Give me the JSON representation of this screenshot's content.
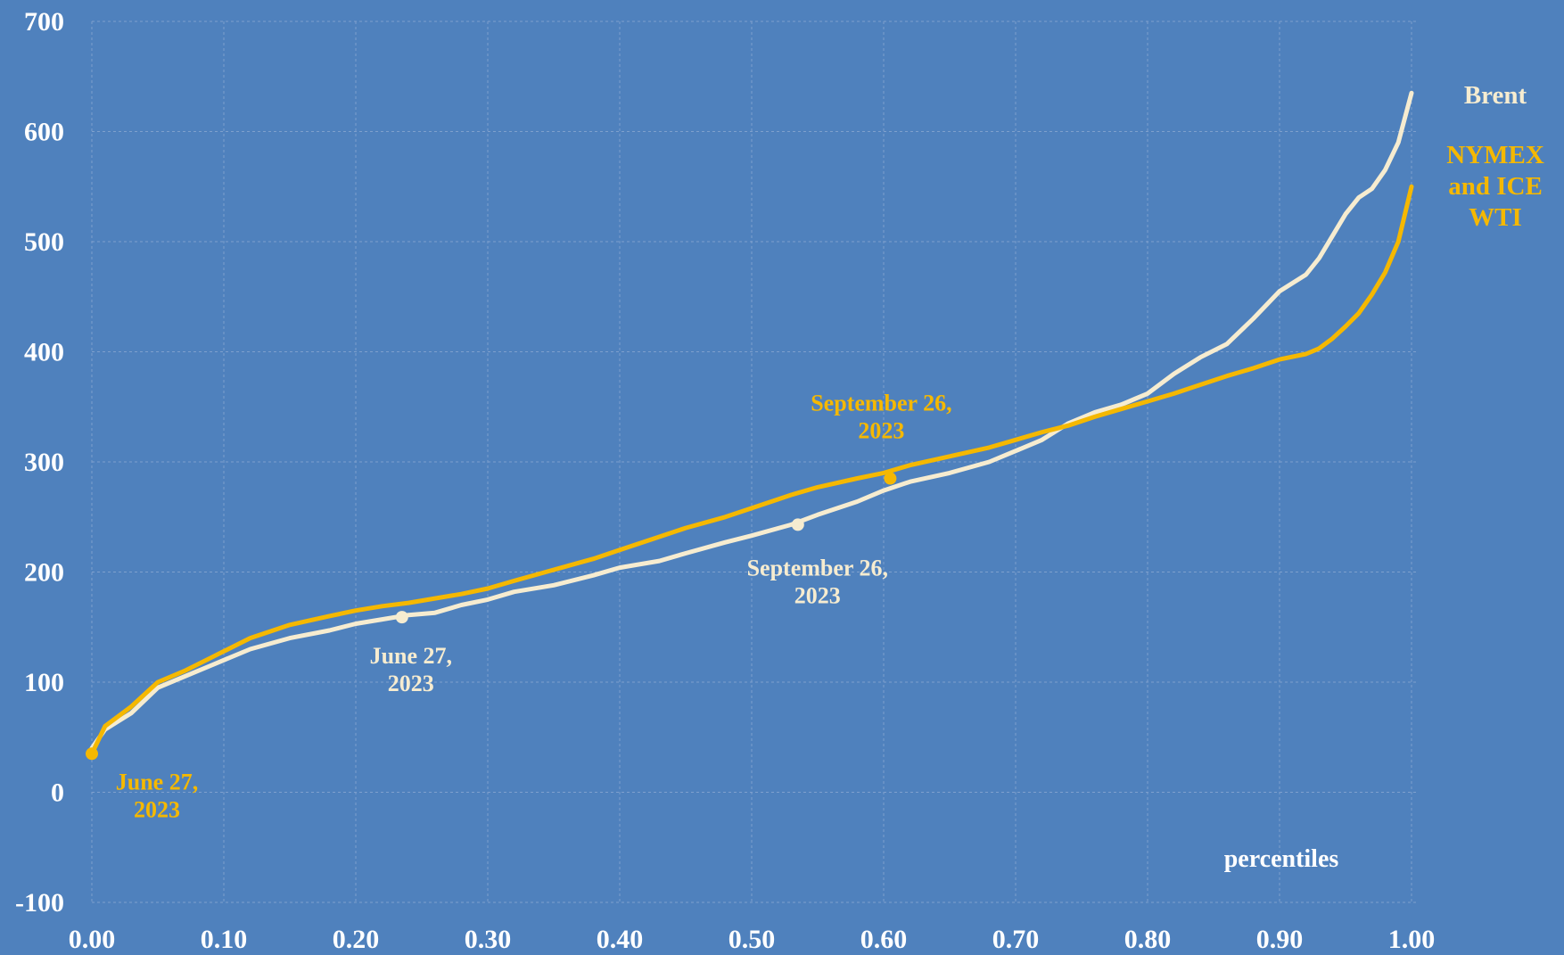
{
  "chart_data": {
    "type": "line",
    "title": "",
    "xlabel": "percentiles",
    "ylabel": "",
    "xlim": [
      0,
      1
    ],
    "ylim": [
      -100,
      700
    ],
    "grid": true,
    "x_ticks": [
      0.0,
      0.1,
      0.2,
      0.3,
      0.4,
      0.5,
      0.6,
      0.7,
      0.8,
      0.9,
      1.0
    ],
    "x_tick_labels": [
      "0.00",
      "0.10",
      "0.20",
      "0.30",
      "0.40",
      "0.50",
      "0.60",
      "0.70",
      "0.80",
      "0.90",
      "1.00"
    ],
    "y_ticks": [
      -100,
      0,
      100,
      200,
      300,
      400,
      500,
      600,
      700
    ],
    "y_tick_labels": [
      "-100",
      "0",
      "100",
      "200",
      "300",
      "400",
      "500",
      "600",
      "700"
    ],
    "colors": {
      "background": "#4f81bd",
      "grid": "#7ea0cd",
      "brent": "#f6ecd0",
      "wti": "#f5b800",
      "axis_text": "#ffffff"
    },
    "series": [
      {
        "name": "Brent",
        "label_lines": [
          "Brent"
        ],
        "color": "#f6ecd0",
        "x": [
          0.0,
          0.01,
          0.03,
          0.05,
          0.07,
          0.09,
          0.1,
          0.12,
          0.15,
          0.18,
          0.2,
          0.22,
          0.24,
          0.26,
          0.28,
          0.3,
          0.32,
          0.35,
          0.38,
          0.4,
          0.43,
          0.45,
          0.48,
          0.5,
          0.53,
          0.55,
          0.58,
          0.6,
          0.62,
          0.65,
          0.68,
          0.7,
          0.72,
          0.74,
          0.76,
          0.78,
          0.8,
          0.82,
          0.84,
          0.86,
          0.88,
          0.9,
          0.92,
          0.93,
          0.94,
          0.95,
          0.96,
          0.97,
          0.98,
          0.99,
          1.0
        ],
        "values": [
          40,
          57,
          72,
          95,
          105,
          115,
          120,
          130,
          140,
          147,
          153,
          157,
          161,
          163,
          170,
          175,
          182,
          188,
          197,
          204,
          210,
          217,
          227,
          233,
          243,
          252,
          264,
          274,
          282,
          290,
          300,
          310,
          320,
          335,
          345,
          352,
          362,
          380,
          395,
          407,
          430,
          455,
          470,
          485,
          505,
          525,
          540,
          548,
          565,
          590,
          635
        ]
      },
      {
        "name": "NYMEX and ICE WTI",
        "label_lines": [
          "NYMEX",
          "and ICE",
          "WTI"
        ],
        "color": "#f5b800",
        "x": [
          0.0,
          0.01,
          0.03,
          0.05,
          0.07,
          0.09,
          0.1,
          0.12,
          0.15,
          0.18,
          0.2,
          0.22,
          0.24,
          0.26,
          0.28,
          0.3,
          0.32,
          0.35,
          0.38,
          0.4,
          0.43,
          0.45,
          0.48,
          0.5,
          0.53,
          0.55,
          0.58,
          0.6,
          0.62,
          0.65,
          0.68,
          0.7,
          0.72,
          0.74,
          0.76,
          0.78,
          0.8,
          0.82,
          0.84,
          0.86,
          0.88,
          0.9,
          0.92,
          0.93,
          0.94,
          0.95,
          0.96,
          0.97,
          0.98,
          0.99,
          1.0
        ],
        "values": [
          35,
          60,
          78,
          100,
          110,
          122,
          128,
          140,
          152,
          160,
          165,
          169,
          172,
          176,
          180,
          185,
          192,
          202,
          212,
          220,
          232,
          240,
          250,
          258,
          270,
          277,
          285,
          290,
          297,
          305,
          313,
          320,
          327,
          333,
          341,
          348,
          355,
          362,
          370,
          378,
          385,
          393,
          398,
          403,
          412,
          423,
          435,
          452,
          472,
          500,
          550
        ]
      }
    ],
    "annotations": [
      {
        "series": "NYMEX and ICE WTI",
        "x": 0.0,
        "y": 35,
        "lines": [
          "June 27,",
          "2023"
        ],
        "color": "#f5b800"
      },
      {
        "series": "Brent",
        "x": 0.235,
        "y": 159,
        "lines": [
          "June 27,",
          "2023"
        ],
        "color": "#f6ecd0"
      },
      {
        "series": "Brent",
        "x": 0.535,
        "y": 243,
        "lines": [
          "September 26,",
          "2023"
        ],
        "color": "#f6ecd0"
      },
      {
        "series": "NYMEX and ICE WTI",
        "x": 0.605,
        "y": 285,
        "lines": [
          "September 26,",
          "2023"
        ],
        "color": "#f5b800"
      }
    ]
  }
}
